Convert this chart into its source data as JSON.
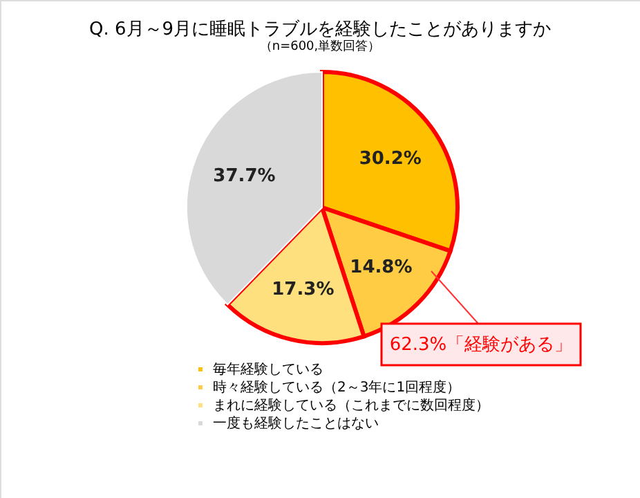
{
  "chart_data": {
    "type": "pie",
    "title": "Q. 6月～9月に睡眠トラブルを経験したことがありますか",
    "subtitle": "（n=600,単数回答）",
    "categories": [
      "毎年経験している",
      "時々経験している（2～3年に1回程度）",
      "まれに経験している（これまでに数回程度）",
      "一度も経験したことはない"
    ],
    "values": [
      30.2,
      14.8,
      17.3,
      37.7
    ],
    "colors": [
      "#ffc000",
      "#ffcc44",
      "#ffe07f",
      "#d9d9d9"
    ],
    "value_labels": [
      "30.2%",
      "14.8%",
      "17.3%",
      "37.7%"
    ],
    "annotations": [
      "62.3%「経験がある」"
    ],
    "legend": "bottom"
  }
}
